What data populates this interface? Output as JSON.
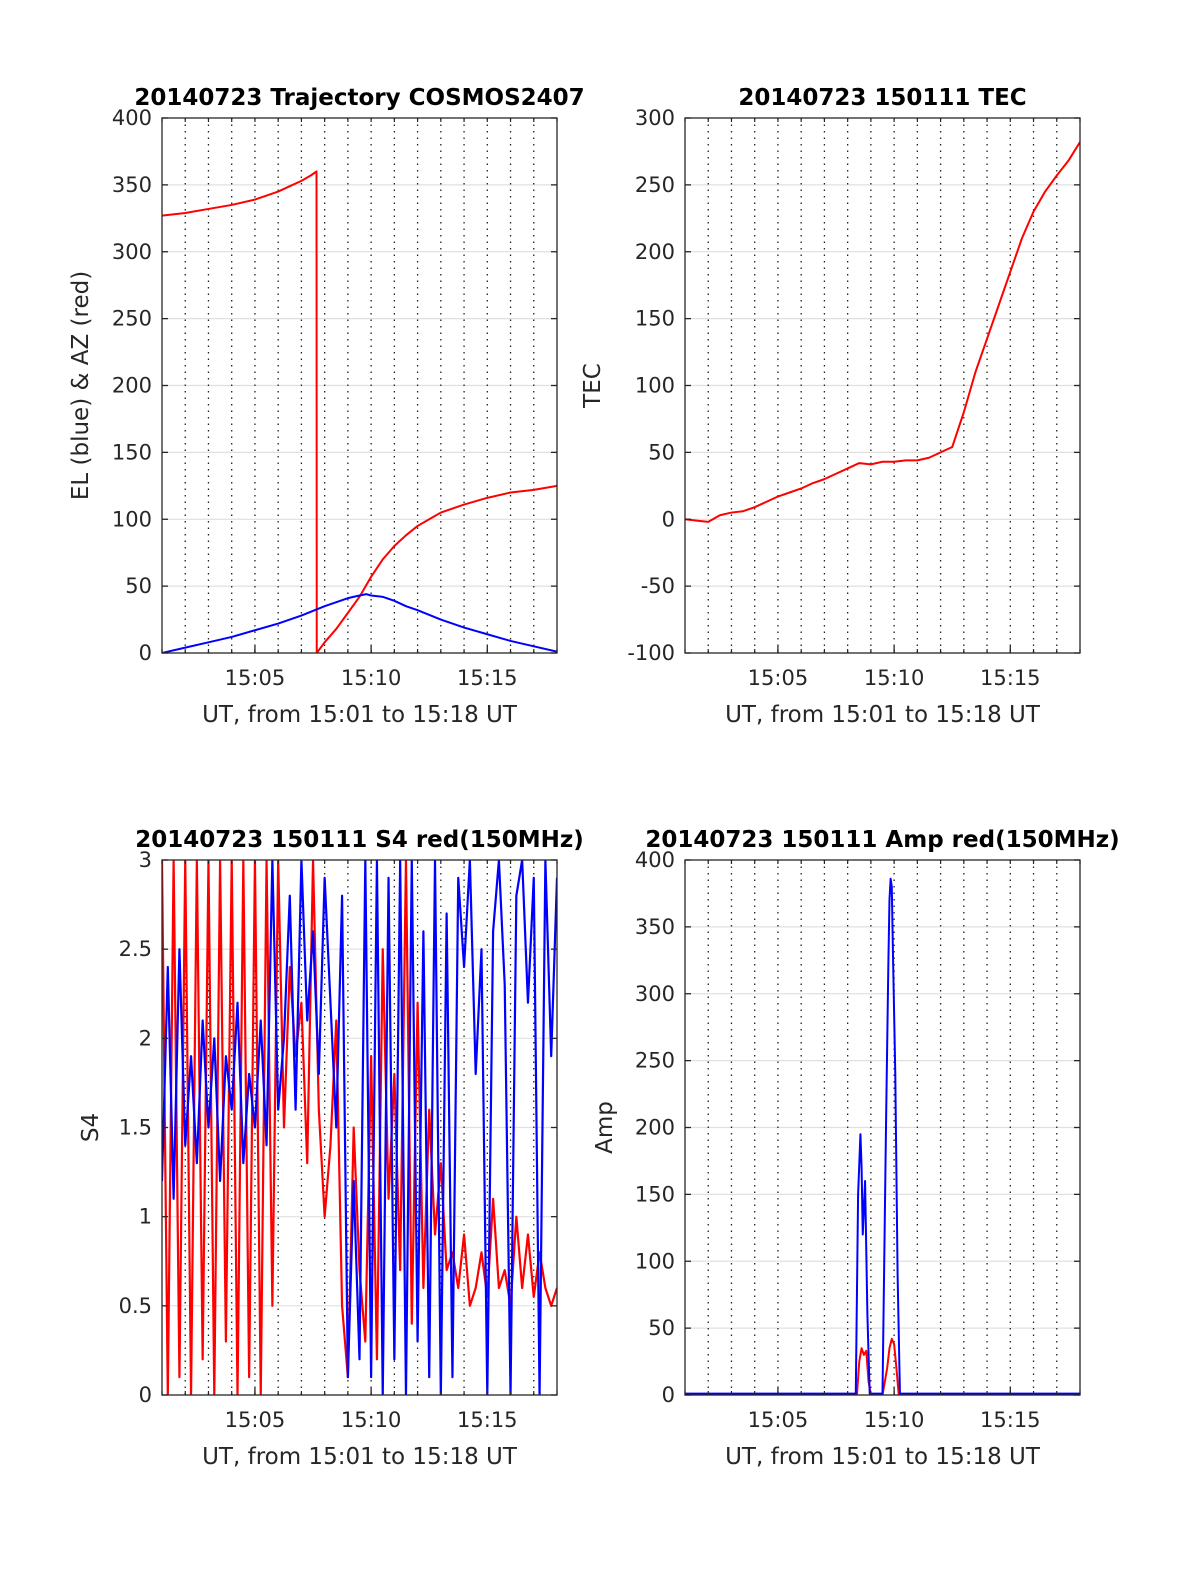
{
  "figure": {
    "panels": [
      {
        "title": "20140723 Trajectory COSMOS2407",
        "xlabel": "UT, from 15:01 to 15:18 UT",
        "ylabel": "EL (blue) & AZ (red)"
      },
      {
        "title": "20140723 150111 TEC",
        "xlabel": "UT, from 15:01 to 15:18 UT",
        "ylabel": "TEC"
      },
      {
        "title": "20140723 150111 S4 red(150MHz)",
        "xlabel": "UT, from 15:01 to 15:18 UT",
        "ylabel": "S4"
      },
      {
        "title": "20140723 150111 Amp red(150MHz)",
        "xlabel": "UT, from 15:01 to 15:18 UT",
        "ylabel": "Amp"
      }
    ]
  },
  "chart_data": [
    {
      "type": "line",
      "title": "20140723 Trajectory COSMOS2407",
      "xlabel": "UT, from 15:01 to 15:18 UT",
      "ylabel": "EL (blue) & AZ (red)",
      "xlim": [
        1.0,
        18.0
      ],
      "ylim": [
        0,
        400
      ],
      "xticks": [
        5,
        10,
        15
      ],
      "xticklabels": [
        "15:05",
        "15:10",
        "15:15"
      ],
      "yticks": [
        0,
        50,
        100,
        150,
        200,
        250,
        300,
        350,
        400
      ],
      "yticklabels": [
        "0",
        "50",
        "100",
        "150",
        "200",
        "250",
        "300",
        "350",
        "400"
      ],
      "xminor_step": 1,
      "grid": true,
      "series": [
        {
          "color": "#ff0000",
          "x": [
            1.0,
            2.0,
            3.0,
            4.0,
            5.0,
            6.0,
            6.5,
            7.0,
            7.4,
            7.65,
            7.66,
            8.0,
            8.5,
            9.0,
            9.5,
            10.0,
            10.5,
            11.0,
            11.5,
            12.0,
            12.5,
            13.0,
            14.0,
            15.0,
            16.0,
            17.0,
            18.0
          ],
          "y": [
            327,
            329,
            332,
            335,
            339,
            345,
            349,
            353,
            357,
            360,
            0,
            8,
            18,
            30,
            42,
            57,
            70,
            80,
            88,
            95,
            100,
            105,
            111,
            116,
            120,
            122,
            125
          ]
        },
        {
          "color": "#0000ff",
          "x": [
            1.0,
            2.0,
            3.0,
            4.0,
            5.0,
            6.0,
            7.0,
            8.0,
            8.5,
            9.0,
            9.5,
            9.8,
            10.0,
            10.5,
            11.0,
            11.5,
            12.0,
            13.0,
            14.0,
            15.0,
            16.0,
            17.0,
            18.0
          ],
          "y": [
            0,
            4,
            8,
            12,
            17,
            22,
            28,
            35,
            38,
            41,
            43,
            44,
            43,
            42,
            39,
            35,
            32,
            25,
            19,
            14,
            9,
            5,
            1
          ]
        }
      ]
    },
    {
      "type": "line",
      "title": "20140723 150111 TEC",
      "xlabel": "UT, from 15:01 to 15:18 UT",
      "ylabel": "TEC",
      "xlim": [
        1.0,
        18.0
      ],
      "ylim": [
        -100,
        300
      ],
      "xticks": [
        5,
        10,
        15
      ],
      "xticklabels": [
        "15:05",
        "15:10",
        "15:15"
      ],
      "yticks": [
        -100,
        -50,
        0,
        50,
        100,
        150,
        200,
        250,
        300
      ],
      "yticklabels": [
        "-100",
        "-50",
        "0",
        "50",
        "100",
        "150",
        "200",
        "250",
        "300"
      ],
      "xminor_step": 1,
      "grid": true,
      "series": [
        {
          "color": "#ff0000",
          "x": [
            1.0,
            1.5,
            2.0,
            2.5,
            3.0,
            3.5,
            4.0,
            4.5,
            5.0,
            5.5,
            6.0,
            6.5,
            7.0,
            7.5,
            8.0,
            8.5,
            9.0,
            9.5,
            10.0,
            10.5,
            11.0,
            11.5,
            12.0,
            12.5,
            13.0,
            13.5,
            14.0,
            14.5,
            15.0,
            15.5,
            16.0,
            16.5,
            17.0,
            17.5,
            18.0
          ],
          "y": [
            0,
            -1,
            -2,
            3,
            5,
            6,
            9,
            13,
            17,
            20,
            23,
            27,
            30,
            34,
            38,
            42,
            41,
            43,
            43,
            44,
            44,
            46,
            50,
            54,
            80,
            110,
            135,
            160,
            185,
            210,
            230,
            245,
            257,
            268,
            282
          ]
        }
      ]
    },
    {
      "type": "line",
      "title": "20140723 150111 S4 red(150MHz)",
      "xlabel": "UT, from 15:01 to 15:18 UT",
      "ylabel": "S4",
      "xlim": [
        1.0,
        18.0
      ],
      "ylim": [
        0,
        3
      ],
      "xticks": [
        5,
        10,
        15
      ],
      "xticklabels": [
        "15:05",
        "15:10",
        "15:15"
      ],
      "yticks": [
        0,
        0.5,
        1,
        1.5,
        2,
        2.5,
        3
      ],
      "yticklabels": [
        "0",
        "0.5",
        "1",
        "1.5",
        "2",
        "2.5",
        "3"
      ],
      "xminor_step": 1,
      "grid": true,
      "series": [
        {
          "color": "#ff0000",
          "x": [
            1.0,
            1.25,
            1.5,
            1.75,
            2.0,
            2.25,
            2.5,
            2.75,
            3.0,
            3.25,
            3.5,
            3.75,
            4.0,
            4.25,
            4.5,
            4.75,
            5.0,
            5.25,
            5.5,
            5.75,
            6.0,
            6.25,
            6.5,
            6.75,
            7.0,
            7.25,
            7.5,
            7.75,
            8.0,
            8.25,
            8.5,
            8.75,
            9.0,
            9.25,
            9.5,
            9.75,
            10.0,
            10.25,
            10.5,
            10.75,
            11.0,
            11.25,
            11.5,
            11.75,
            12.0,
            12.25,
            12.5,
            12.75,
            13.0,
            13.25,
            13.5,
            13.75,
            14.0,
            14.25,
            14.5,
            14.75,
            15.0,
            15.25,
            15.5,
            15.75,
            16.0,
            16.25,
            16.5,
            16.75,
            17.0,
            17.25,
            17.5,
            17.75,
            18.0
          ],
          "y": [
            3.0,
            0.0,
            3.0,
            0.1,
            3.0,
            0.0,
            3.0,
            0.2,
            3.0,
            0.0,
            3.0,
            0.3,
            3.0,
            0.0,
            3.0,
            0.1,
            3.0,
            0.0,
            3.0,
            0.5,
            3.0,
            1.5,
            2.4,
            1.9,
            2.2,
            1.3,
            3.0,
            1.6,
            1.0,
            1.4,
            2.1,
            0.5,
            0.1,
            1.5,
            0.7,
            0.3,
            1.9,
            0.2,
            2.5,
            1.1,
            1.8,
            0.7,
            3.0,
            0.4,
            2.2,
            0.6,
            1.6,
            0.9,
            1.3,
            0.7,
            0.8,
            0.6,
            0.9,
            0.5,
            0.6,
            0.8,
            0.55,
            1.1,
            0.6,
            0.7,
            0.5,
            1.0,
            0.6,
            0.9,
            0.55,
            0.8,
            0.6,
            0.5,
            0.6
          ]
        },
        {
          "color": "#0000ff",
          "x": [
            1.0,
            1.25,
            1.5,
            1.75,
            2.0,
            2.25,
            2.5,
            2.75,
            3.0,
            3.25,
            3.5,
            3.75,
            4.0,
            4.25,
            4.5,
            4.75,
            5.0,
            5.25,
            5.5,
            5.75,
            6.0,
            6.25,
            6.5,
            6.75,
            7.0,
            7.25,
            7.5,
            7.75,
            8.0,
            8.25,
            8.5,
            8.75,
            9.0,
            9.25,
            9.5,
            9.75,
            10.0,
            10.25,
            10.5,
            10.75,
            11.0,
            11.25,
            11.5,
            11.75,
            12.0,
            12.25,
            12.5,
            12.75,
            13.0,
            13.25,
            13.5,
            13.75,
            14.0,
            14.25,
            14.5,
            14.75,
            15.0,
            15.25,
            15.5,
            15.75,
            16.0,
            16.25,
            16.5,
            16.75,
            17.0,
            17.25,
            17.5,
            17.75,
            18.0
          ],
          "y": [
            1.2,
            2.4,
            1.1,
            2.5,
            1.4,
            1.9,
            1.3,
            2.1,
            1.5,
            2.0,
            1.2,
            1.9,
            1.6,
            2.2,
            1.3,
            1.8,
            1.5,
            2.1,
            1.4,
            3.0,
            1.6,
            2.0,
            2.8,
            1.6,
            3.0,
            2.1,
            2.6,
            1.8,
            2.9,
            2.2,
            1.5,
            2.8,
            0.1,
            1.2,
            0.2,
            3.0,
            0.1,
            3.0,
            0.0,
            2.9,
            0.2,
            3.0,
            0.0,
            3.0,
            0.3,
            2.6,
            0.1,
            3.0,
            0.0,
            2.7,
            0.1,
            2.9,
            2.4,
            3.0,
            1.8,
            2.5,
            0.0,
            2.6,
            3.0,
            2.3,
            0.0,
            2.8,
            3.0,
            2.2,
            2.9,
            0.0,
            3.0,
            1.9,
            2.9
          ]
        }
      ]
    },
    {
      "type": "line",
      "title": "20140723 150111 Amp red(150MHz)",
      "xlabel": "UT, from 15:01 to 15:18 UT",
      "ylabel": "Amp",
      "xlim": [
        1.0,
        18.0
      ],
      "ylim": [
        0,
        400
      ],
      "xticks": [
        5,
        10,
        15
      ],
      "xticklabels": [
        "15:05",
        "15:10",
        "15:15"
      ],
      "yticks": [
        0,
        50,
        100,
        150,
        200,
        250,
        300,
        350,
        400
      ],
      "yticklabels": [
        "0",
        "50",
        "100",
        "150",
        "200",
        "250",
        "300",
        "350",
        "400"
      ],
      "xminor_step": 1,
      "grid": true,
      "series": [
        {
          "color": "#ff0000",
          "x": [
            1.0,
            8.4,
            8.5,
            8.6,
            8.7,
            8.8,
            8.9,
            9.0,
            9.5,
            9.7,
            9.8,
            9.9,
            10.0,
            10.1,
            10.2,
            18.0
          ],
          "y": [
            0,
            0,
            25,
            35,
            30,
            33,
            10,
            0,
            0,
            20,
            35,
            42,
            38,
            20,
            0,
            0
          ]
        },
        {
          "color": "#0000ff",
          "x": [
            1.0,
            8.35,
            8.45,
            8.55,
            8.6,
            8.65,
            8.75,
            8.85,
            8.95,
            9.5,
            9.65,
            9.75,
            9.8,
            9.85,
            9.9,
            9.95,
            10.05,
            10.15,
            10.25,
            18.0
          ],
          "y": [
            1,
            1,
            150,
            195,
            170,
            120,
            160,
            60,
            1,
            1,
            200,
            320,
            370,
            386,
            380,
            330,
            240,
            90,
            1,
            1
          ]
        }
      ]
    }
  ]
}
